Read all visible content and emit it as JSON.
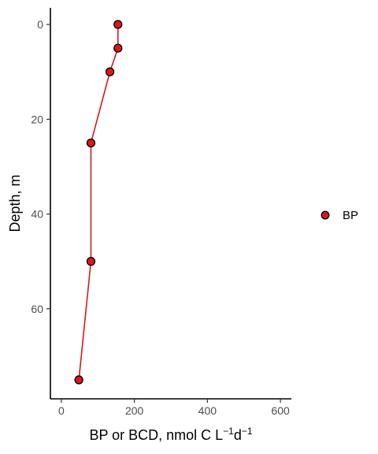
{
  "chart_data": {
    "type": "line",
    "title": "",
    "xlabel": {
      "main": "BP or BCD, nmol C L",
      "sup1": "−1",
      "mid": "d",
      "sup2": "−1"
    },
    "ylabel": "Depth, m",
    "xlim": [
      -30,
      630
    ],
    "ylim": [
      -3.5,
      79
    ],
    "y_reversed": true,
    "grid": false,
    "legend_position": "right",
    "x_ticks": [
      0,
      200,
      400,
      600
    ],
    "x_tick_labels": [
      "0",
      "200",
      "400",
      "600"
    ],
    "y_ticks": [
      0,
      20,
      40,
      60
    ],
    "y_tick_labels": [
      "0",
      "20",
      "40",
      "60"
    ],
    "series": [
      {
        "name": "BP",
        "color": "#d7191c",
        "points": [
          {
            "x": 155,
            "depth": 0
          },
          {
            "x": 155,
            "depth": 5
          },
          {
            "x": 133,
            "depth": 10
          },
          {
            "x": 81,
            "depth": 25
          },
          {
            "x": 81,
            "depth": 50
          },
          {
            "x": 48,
            "depth": 75
          }
        ]
      }
    ]
  }
}
